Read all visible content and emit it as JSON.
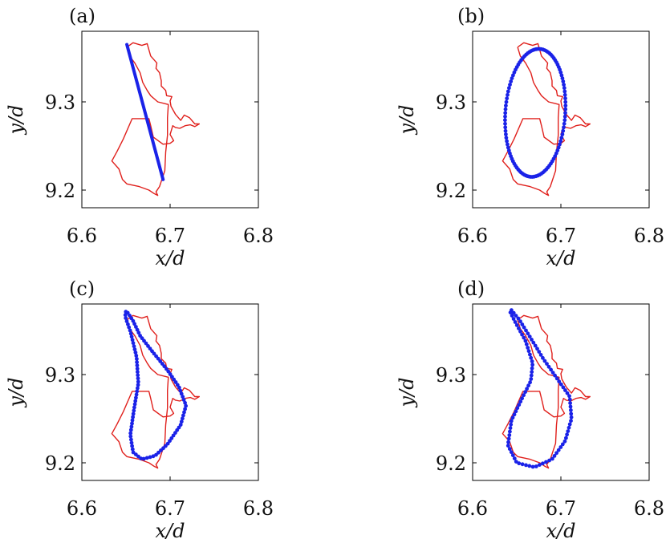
{
  "colors": {
    "reference": "#e0201c",
    "fit": "#1a22e8",
    "axes": "#000000"
  },
  "chart_data": [
    {
      "panel": "(a)",
      "type": "line",
      "xlabel": "x/d",
      "ylabel": "y/d",
      "xlim": [
        6.6,
        6.8
      ],
      "ylim": [
        9.18,
        9.38
      ],
      "xticks": [
        "6.6",
        "6.7",
        "6.8"
      ],
      "yticks": [
        "9.2",
        "9.3"
      ],
      "fit_shape": "line",
      "fit_params": {
        "x1": 6.651,
        "y1": 9.365,
        "x2": 6.692,
        "y2": 9.212
      }
    },
    {
      "panel": "(b)",
      "type": "scatter",
      "xlabel": "x/d",
      "ylabel": "y/d",
      "xlim": [
        6.6,
        6.8
      ],
      "ylim": [
        9.18,
        9.38
      ],
      "xticks": [
        "6.6",
        "6.7",
        "6.8"
      ],
      "yticks": [
        "9.2",
        "9.3"
      ],
      "fit_shape": "ellipse",
      "fit_params": {
        "cx": 6.671,
        "cy": 9.2875,
        "rx": 0.034,
        "ry": 0.0725,
        "tilt": -0.11
      }
    },
    {
      "panel": "(c)",
      "type": "scatter",
      "xlabel": "x/d",
      "ylabel": "y/d",
      "xlim": [
        6.6,
        6.8
      ],
      "ylim": [
        9.18,
        9.38
      ],
      "xticks": [
        "6.6",
        "6.7",
        "6.8"
      ],
      "yticks": [
        "9.2",
        "9.3"
      ],
      "fit_shape": "loop",
      "fit_params": {
        "path": [
          [
            6.652,
            9.37
          ],
          [
            6.658,
            9.361
          ],
          [
            6.666,
            9.344
          ],
          [
            6.68,
            9.326
          ],
          [
            6.697,
            9.305
          ],
          [
            6.71,
            9.286
          ],
          [
            6.718,
            9.265
          ],
          [
            6.712,
            9.243
          ],
          [
            6.697,
            9.221
          ],
          [
            6.683,
            9.208
          ],
          [
            6.668,
            9.204
          ],
          [
            6.658,
            9.212
          ],
          [
            6.655,
            9.232
          ],
          [
            6.659,
            9.26
          ],
          [
            6.664,
            9.29
          ],
          [
            6.662,
            9.32
          ],
          [
            6.655,
            9.349
          ],
          [
            6.649,
            9.366
          ],
          [
            6.65,
            9.372
          ],
          [
            6.652,
            9.37
          ]
        ]
      }
    },
    {
      "panel": "(d)",
      "type": "scatter",
      "xlabel": "x/d",
      "ylabel": "y/d",
      "xlim": [
        6.6,
        6.8
      ],
      "ylim": [
        9.18,
        9.38
      ],
      "xticks": [
        "6.6",
        "6.7",
        "6.8"
      ],
      "yticks": [
        "9.2",
        "9.3"
      ],
      "fit_shape": "loop",
      "fit_params": {
        "path": [
          [
            6.644,
            9.373
          ],
          [
            6.653,
            9.362
          ],
          [
            6.666,
            9.341
          ],
          [
            6.68,
            9.318
          ],
          [
            6.696,
            9.295
          ],
          [
            6.71,
            9.275
          ],
          [
            6.712,
            9.25
          ],
          [
            6.705,
            9.225
          ],
          [
            6.69,
            9.204
          ],
          [
            6.67,
            9.195
          ],
          [
            6.65,
            9.2
          ],
          [
            6.64,
            9.22
          ],
          [
            6.644,
            9.248
          ],
          [
            6.656,
            9.273
          ],
          [
            6.666,
            9.293
          ],
          [
            6.668,
            9.313
          ],
          [
            6.66,
            9.338
          ],
          [
            6.648,
            9.36
          ],
          [
            6.642,
            9.372
          ],
          [
            6.644,
            9.373
          ]
        ]
      }
    }
  ],
  "reference_curve": {
    "path": [
      [
        6.651,
        9.362
      ],
      [
        6.658,
        9.367
      ],
      [
        6.668,
        9.364
      ],
      [
        6.674,
        9.366
      ],
      [
        6.678,
        9.352
      ],
      [
        6.685,
        9.344
      ],
      [
        6.684,
        9.338
      ],
      [
        6.688,
        9.333
      ],
      [
        6.69,
        9.324
      ],
      [
        6.69,
        9.318
      ],
      [
        6.695,
        9.313
      ],
      [
        6.696,
        9.307
      ],
      [
        6.702,
        9.306
      ],
      [
        6.7,
        9.301
      ],
      [
        6.701,
        9.295
      ],
      [
        6.706,
        9.286
      ],
      [
        6.712,
        9.279
      ],
      [
        6.716,
        9.285
      ],
      [
        6.722,
        9.282
      ],
      [
        6.728,
        9.275
      ],
      [
        6.733,
        9.275
      ],
      [
        6.728,
        9.272
      ],
      [
        6.723,
        9.274
      ],
      [
        6.717,
        9.273
      ],
      [
        6.711,
        9.27
      ],
      [
        6.706,
        9.271
      ],
      [
        6.703,
        9.273
      ],
      [
        6.7,
        9.263
      ],
      [
        6.704,
        9.256
      ],
      [
        6.7,
        9.253
      ],
      [
        6.692,
        9.252
      ],
      [
        6.681,
        9.26
      ],
      [
        6.678,
        9.273
      ],
      [
        6.676,
        9.281
      ],
      [
        6.664,
        9.281
      ],
      [
        6.657,
        9.281
      ],
      [
        6.647,
        9.258
      ],
      [
        6.64,
        9.244
      ],
      [
        6.634,
        9.233
      ],
      [
        6.642,
        9.224
      ],
      [
        6.646,
        9.212
      ],
      [
        6.651,
        9.207
      ],
      [
        6.665,
        9.204
      ],
      [
        6.676,
        9.2
      ],
      [
        6.682,
        9.196
      ],
      [
        6.686,
        9.194
      ],
      [
        6.684,
        9.198
      ],
      [
        6.688,
        9.204
      ],
      [
        6.694,
        9.222
      ],
      [
        6.695,
        9.243
      ],
      [
        6.697,
        9.262
      ],
      [
        6.697,
        9.282
      ],
      [
        6.698,
        9.297
      ],
      [
        6.686,
        9.3
      ],
      [
        6.678,
        9.307
      ],
      [
        6.674,
        9.313
      ],
      [
        6.669,
        9.322
      ],
      [
        6.666,
        9.333
      ],
      [
        6.66,
        9.344
      ],
      [
        6.654,
        9.352
      ],
      [
        6.651,
        9.362
      ]
    ]
  }
}
